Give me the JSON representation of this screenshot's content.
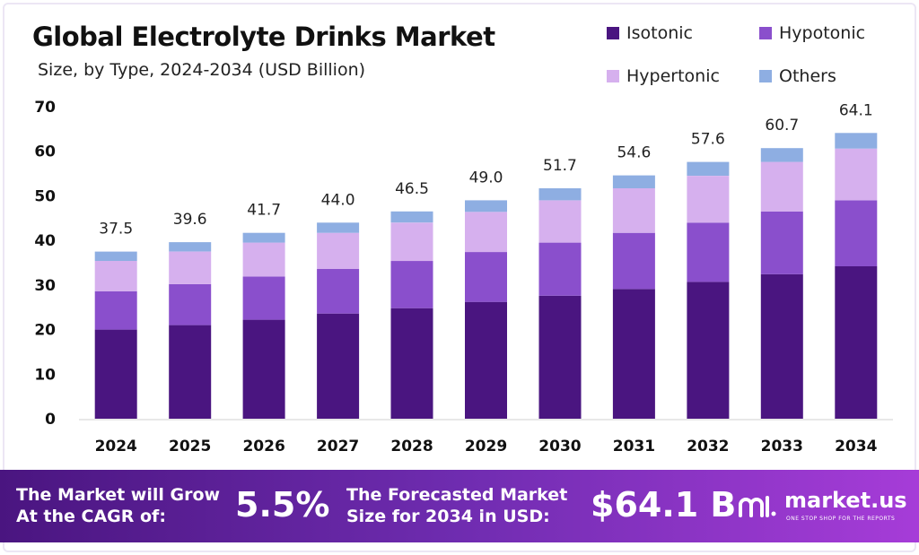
{
  "chart_data": {
    "type": "bar",
    "stacked": true,
    "title": "Global Electrolyte Drinks Market",
    "subtitle": "Size, by Type, 2024-2034 (USD Billion)",
    "categories": [
      "2024",
      "2025",
      "2026",
      "2027",
      "2028",
      "2029",
      "2030",
      "2031",
      "2032",
      "2033",
      "2034"
    ],
    "series": [
      {
        "name": "Isotonic",
        "color": "#4a1580",
        "values": [
          20.0,
          21.0,
          22.2,
          23.6,
          24.8,
          26.2,
          27.6,
          29.1,
          30.7,
          32.4,
          34.2
        ]
      },
      {
        "name": "Hypotonic",
        "color": "#8a4fcc",
        "values": [
          8.6,
          9.2,
          9.7,
          10.0,
          10.6,
          11.2,
          11.9,
          12.6,
          13.3,
          14.1,
          14.8
        ]
      },
      {
        "name": "Hypertonic",
        "color": "#d6b0ee",
        "values": [
          6.8,
          7.3,
          7.6,
          8.1,
          8.6,
          9.0,
          9.5,
          10.0,
          10.5,
          11.1,
          11.6
        ]
      },
      {
        "name": "Others",
        "color": "#8eaee2",
        "values": [
          2.1,
          2.1,
          2.2,
          2.3,
          2.5,
          2.6,
          2.7,
          2.9,
          3.1,
          3.1,
          3.5
        ]
      }
    ],
    "totals": [
      "37.5",
      "39.6",
      "41.7",
      "44.0",
      "46.5",
      "49.0",
      "51.7",
      "54.6",
      "57.6",
      "60.7",
      "64.1"
    ],
    "yticks": [
      "0",
      "10",
      "20",
      "30",
      "40",
      "50",
      "60",
      "70"
    ],
    "ylim": [
      0,
      70
    ],
    "grid": false,
    "legend": "top-right"
  },
  "banner": {
    "cagr_label_1": "The Market will Grow",
    "cagr_label_2": "At the CAGR of:",
    "cagr_value": "5.5%",
    "forecast_label_1": "The Forecasted Market",
    "forecast_label_2": "Size for 2034 in USD:",
    "forecast_value": "$64.1 B",
    "logo_name": "market.us",
    "logo_tagline": "ONE STOP SHOP FOR THE REPORTS"
  }
}
